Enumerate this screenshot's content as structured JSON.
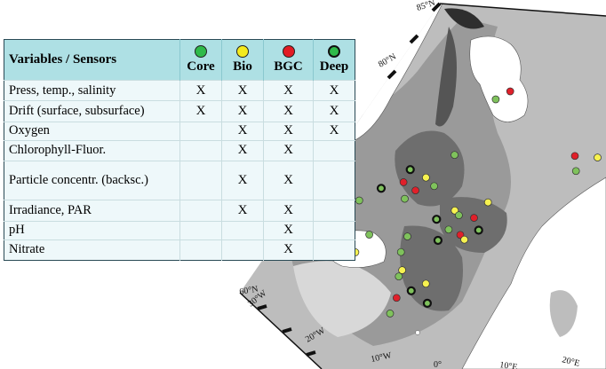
{
  "table": {
    "header": {
      "title": "Variables / Sensors",
      "columns": [
        {
          "label": "Core",
          "color": "#2fba4a"
        },
        {
          "label": "Bio",
          "color": "#f4ea1e"
        },
        {
          "label": "BGC",
          "color": "#e21b23"
        },
        {
          "label": "Deep",
          "color": "#2fba4a"
        }
      ]
    },
    "rows": [
      {
        "label": "Press, temp., salinity",
        "marks": [
          "X",
          "X",
          "X",
          "X"
        ]
      },
      {
        "label": "Drift (surface, subsurface)",
        "marks": [
          "X",
          "X",
          "X",
          "X"
        ]
      },
      {
        "label": "Oxygen",
        "marks": [
          "",
          "X",
          "X",
          "X"
        ]
      },
      {
        "label": "Chlorophyll-Fluor.",
        "marks": [
          "",
          "X",
          "X",
          ""
        ]
      },
      {
        "label": "Particle concentr. (backsc.)",
        "marks": [
          "",
          "X",
          "X",
          ""
        ]
      },
      {
        "label": "Irradiance, PAR",
        "marks": [
          "",
          "X",
          "X",
          ""
        ]
      },
      {
        "label": "pH",
        "marks": [
          "",
          "",
          "X",
          ""
        ]
      },
      {
        "label": "Nitrate",
        "marks": [
          "",
          "",
          "X",
          ""
        ]
      }
    ]
  },
  "map": {
    "latitude_labels": [
      "85°N",
      "80°N",
      "60°N"
    ],
    "longitude_labels": [
      "30°W",
      "20°W",
      "10°W",
      "0°",
      "10°E",
      "20°E"
    ],
    "colors": {
      "core": "#7fc25c",
      "bio": "#f7f250",
      "bgc": "#e0202a",
      "deep_ring": "#111111"
    },
    "floats": [
      {
        "type": "bgc",
        "lon": 10,
        "lat": 79.0
      },
      {
        "type": "core",
        "lon": 8,
        "lat": 78.4
      },
      {
        "type": "core",
        "lon": 2,
        "lat": 74.5
      },
      {
        "type": "deep",
        "lon": -4,
        "lat": 73.6
      },
      {
        "type": "bio",
        "lon": -2,
        "lat": 73.0
      },
      {
        "type": "bgc",
        "lon": -5,
        "lat": 72.8
      },
      {
        "type": "deep",
        "lon": -8,
        "lat": 72.5
      },
      {
        "type": "bgc",
        "lon": -3.5,
        "lat": 72.2
      },
      {
        "type": "core",
        "lon": -1,
        "lat": 72.4
      },
      {
        "type": "core",
        "lon": -11,
        "lat": 71.8
      },
      {
        "type": "core",
        "lon": -5,
        "lat": 71.7
      },
      {
        "type": "bgc",
        "lon": 18,
        "lat": 75.0
      },
      {
        "type": "bio",
        "lon": 21,
        "lat": 75.0
      },
      {
        "type": "core",
        "lon": 18,
        "lat": 74.0
      },
      {
        "type": "bio",
        "lon": 6,
        "lat": 71.5
      },
      {
        "type": "bio",
        "lon": 1.5,
        "lat": 70.8
      },
      {
        "type": "core",
        "lon": 2,
        "lat": 70.5
      },
      {
        "type": "bgc",
        "lon": 4,
        "lat": 70.4
      },
      {
        "type": "deep",
        "lon": -1,
        "lat": 70.2
      },
      {
        "type": "core",
        "lon": 0.5,
        "lat": 69.5
      },
      {
        "type": "deep",
        "lon": 4.5,
        "lat": 69.6
      },
      {
        "type": "bgc",
        "lon": 2,
        "lat": 69.2
      },
      {
        "type": "bio",
        "lon": 2.5,
        "lat": 68.9
      },
      {
        "type": "core",
        "lon": -5,
        "lat": 69.2
      },
      {
        "type": "deep",
        "lon": -1,
        "lat": 68.8
      },
      {
        "type": "core",
        "lon": -13,
        "lat": 69.7
      },
      {
        "type": "core",
        "lon": -10,
        "lat": 69.5
      },
      {
        "type": "bio",
        "lon": -12,
        "lat": 68.4
      },
      {
        "type": "core",
        "lon": -6,
        "lat": 68.2
      },
      {
        "type": "bio",
        "lon": -6,
        "lat": 67.0
      },
      {
        "type": "core",
        "lon": -6.5,
        "lat": 66.6
      },
      {
        "type": "bio",
        "lon": -3,
        "lat": 66.0
      },
      {
        "type": "deep",
        "lon": -5,
        "lat": 65.6
      },
      {
        "type": "bgc",
        "lon": -7,
        "lat": 65.2
      },
      {
        "type": "deep",
        "lon": -3,
        "lat": 64.7
      },
      {
        "type": "core",
        "lon": -8,
        "lat": 64.2
      }
    ]
  }
}
